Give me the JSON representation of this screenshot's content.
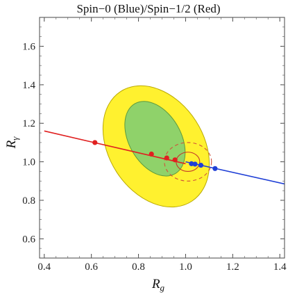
{
  "chart_data": {
    "type": "scatter",
    "title": "Spin−0 (Blue)/Spin−1/2 (Red)",
    "xlabel": "R",
    "xlabel_sub": "g",
    "ylabel": "R",
    "ylabel_sub": "γ",
    "xlim": [
      0.38,
      1.42
    ],
    "ylim": [
      0.5,
      1.75
    ],
    "x_ticks": [
      0.4,
      0.6,
      0.8,
      1.0,
      1.2,
      1.4
    ],
    "x_tick_labels": [
      "0.4",
      "0.6",
      "0.8",
      "1.0",
      "1.2",
      "1.4"
    ],
    "y_ticks": [
      0.6,
      0.8,
      1.0,
      1.2,
      1.4,
      1.6
    ],
    "y_tick_labels": [
      "0.6",
      "0.8",
      "1.0",
      "1.2",
      "1.4",
      "1.6"
    ],
    "grid": false,
    "legend": "none",
    "regions": [
      {
        "fill": "#fff12f",
        "stroke": "#b9a800",
        "center": [
          0.875,
          1.08
        ],
        "semi_axes": [
          0.2,
          0.34
        ],
        "rotation_deg": 33
      },
      {
        "fill": "#8fd26a",
        "stroke": "#5e9a3c",
        "center": [
          0.87,
          1.12
        ],
        "semi_axes": [
          0.11,
          0.21
        ],
        "rotation_deg": 30
      }
    ],
    "dashed_contours": [
      {
        "color": "#d0503a",
        "center": [
          1.01,
          1.0
        ],
        "semi_axes": [
          0.1,
          0.1
        ],
        "dashed": true
      },
      {
        "color": "#c23a2a",
        "center": [
          1.01,
          1.0
        ],
        "semi_axes": [
          0.05,
          0.05
        ],
        "dashed": false
      }
    ],
    "series": [
      {
        "color": "#e02020",
        "line": [
          [
            0.4,
            1.16
          ],
          [
            1.0,
            0.99
          ]
        ],
        "points": [
          [
            0.615,
            1.1
          ],
          [
            0.855,
            1.04
          ],
          [
            0.92,
            1.02
          ],
          [
            0.955,
            1.01
          ]
        ]
      },
      {
        "color": "#1f3fd6",
        "line": [
          [
            1.0,
            1.0
          ],
          [
            1.42,
            0.885
          ]
        ],
        "points": [
          [
            1.025,
            0.99
          ],
          [
            1.04,
            0.988
          ],
          [
            1.065,
            0.982
          ],
          [
            1.125,
            0.965
          ]
        ]
      }
    ]
  }
}
